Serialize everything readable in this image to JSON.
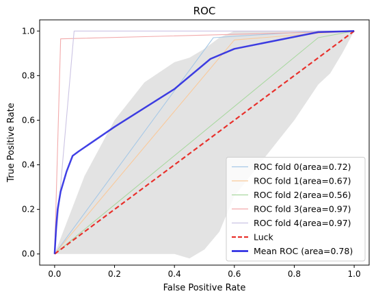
{
  "chart_data": {
    "type": "line",
    "title": "ROC",
    "xlabel": "False Positive Rate",
    "ylabel": "True Positive Rate",
    "xlim": [
      -0.05,
      1.05
    ],
    "ylim": [
      -0.05,
      1.05
    ],
    "xticks": [
      "0.0",
      "0.2",
      "0.4",
      "0.6",
      "0.8",
      "1.0"
    ],
    "yticks": [
      "0.0",
      "0.2",
      "0.4",
      "0.6",
      "0.8",
      "1.0"
    ],
    "grid": false,
    "legend_position": "lower-right",
    "series": [
      {
        "name": "ROC fold 0(area=0.72)",
        "color": "#a6c8e6",
        "style": "solid",
        "x": [
          0.0,
          0.53,
          0.88,
          1.0
        ],
        "y": [
          0.0,
          0.97,
          1.0,
          1.0
        ]
      },
      {
        "name": "ROC fold 1(area=0.67)",
        "color": "#f9c99b",
        "style": "solid",
        "x": [
          0.0,
          0.6,
          0.88,
          1.0
        ],
        "y": [
          0.0,
          0.96,
          0.99,
          1.0
        ]
      },
      {
        "name": "ROC fold 2(area=0.56)",
        "color": "#a9d8a0",
        "style": "solid",
        "x": [
          0.0,
          0.88,
          1.0
        ],
        "y": [
          0.0,
          0.97,
          1.0
        ]
      },
      {
        "name": "ROC fold 3(area=0.97)",
        "color": "#f2a9aa",
        "style": "solid",
        "x": [
          0.0,
          0.02,
          0.88,
          1.0
        ],
        "y": [
          0.0,
          0.965,
          0.995,
          1.0
        ]
      },
      {
        "name": "ROC fold 4(area=0.97)",
        "color": "#cbc3e3",
        "style": "solid",
        "x": [
          0.0,
          0.065,
          0.88,
          1.0
        ],
        "y": [
          0.0,
          1.0,
          1.0,
          1.0
        ]
      },
      {
        "name": "Luck",
        "color": "#e8302b",
        "style": "dashed",
        "x": [
          0.0,
          1.0
        ],
        "y": [
          0.0,
          1.0
        ]
      },
      {
        "name": "Mean ROC (area=0.78)",
        "color": "#1f1fe0",
        "style": "solid",
        "bold": true,
        "x": [
          0.0,
          0.005,
          0.01,
          0.02,
          0.04,
          0.06,
          0.08,
          0.2,
          0.4,
          0.52,
          0.6,
          0.88,
          1.0
        ],
        "y": [
          0.0,
          0.12,
          0.2,
          0.28,
          0.37,
          0.44,
          0.46,
          0.57,
          0.74,
          0.875,
          0.92,
          0.995,
          1.0
        ]
      }
    ],
    "band": {
      "color": "#c8c8c8",
      "upper_x": [
        0.0,
        0.1,
        0.2,
        0.3,
        0.4,
        0.45,
        0.5,
        0.55,
        0.6,
        0.7,
        0.8,
        0.88,
        1.0
      ],
      "upper_y": [
        0.0,
        0.35,
        0.6,
        0.77,
        0.86,
        0.88,
        0.92,
        0.97,
        1.0,
        1.0,
        1.0,
        1.0,
        1.0
      ],
      "lower_x": [
        0.0,
        0.1,
        0.2,
        0.3,
        0.4,
        0.45,
        0.5,
        0.55,
        0.6,
        0.7,
        0.8,
        0.88,
        0.92,
        0.96,
        1.0
      ],
      "lower_y": [
        0.0,
        0.0,
        0.0,
        0.0,
        0.0,
        -0.02,
        0.02,
        0.1,
        0.26,
        0.43,
        0.6,
        0.76,
        0.81,
        0.9,
        1.0
      ]
    }
  }
}
